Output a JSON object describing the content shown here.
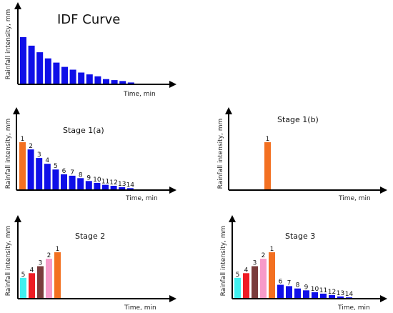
{
  "colors": {
    "blue": "#0f0fe8",
    "orange": "#f37021",
    "cyan": "#3ff0f0",
    "red": "#ee1c24",
    "brown": "#7a3c3c",
    "pink": "#f79ac9",
    "axis": "#000000"
  },
  "panels": [
    {
      "id": "idf-curve",
      "title": "IDF Curve",
      "ylabel": "Rainfall intensity, mm",
      "xlabel": "Time, min",
      "bars": [
        {
          "v": 1.0,
          "c": "blue"
        },
        {
          "v": 0.82,
          "c": "blue"
        },
        {
          "v": 0.68,
          "c": "blue"
        },
        {
          "v": 0.55,
          "c": "blue"
        },
        {
          "v": 0.46,
          "c": "blue"
        },
        {
          "v": 0.37,
          "c": "blue"
        },
        {
          "v": 0.31,
          "c": "blue"
        },
        {
          "v": 0.25,
          "c": "blue"
        },
        {
          "v": 0.21,
          "c": "blue"
        },
        {
          "v": 0.17,
          "c": "blue"
        },
        {
          "v": 0.11,
          "c": "blue"
        },
        {
          "v": 0.09,
          "c": "blue"
        },
        {
          "v": 0.07,
          "c": "blue"
        },
        {
          "v": 0.04,
          "c": "blue"
        }
      ]
    },
    {
      "id": "stage-1a",
      "title": "Stage 1(a)",
      "ylabel": "Rainfall intensity, mm",
      "xlabel": "Time, min",
      "bars": [
        {
          "v": 1.0,
          "c": "orange",
          "n": "1"
        },
        {
          "v": 0.85,
          "c": "blue",
          "n": "2"
        },
        {
          "v": 0.67,
          "c": "blue",
          "n": "3"
        },
        {
          "v": 0.55,
          "c": "blue",
          "n": "4"
        },
        {
          "v": 0.43,
          "c": "blue",
          "n": "5"
        },
        {
          "v": 0.33,
          "c": "blue",
          "n": "6"
        },
        {
          "v": 0.3,
          "c": "blue",
          "n": "7"
        },
        {
          "v": 0.25,
          "c": "blue",
          "n": "8"
        },
        {
          "v": 0.19,
          "c": "blue",
          "n": "9"
        },
        {
          "v": 0.15,
          "c": "blue",
          "n": "10"
        },
        {
          "v": 0.11,
          "c": "blue",
          "n": "11"
        },
        {
          "v": 0.09,
          "c": "blue",
          "n": "12"
        },
        {
          "v": 0.06,
          "c": "blue",
          "n": "13"
        },
        {
          "v": 0.04,
          "c": "blue",
          "n": "14"
        }
      ]
    },
    {
      "id": "stage-1b",
      "title": "Stage 1(b)",
      "ylabel": "Rainfall intensity, mm",
      "xlabel": "Time, min",
      "bars": [
        {
          "v": 1.0,
          "c": "orange",
          "n": "1",
          "slot": 6
        }
      ]
    },
    {
      "id": "stage-2",
      "title": "Stage 2",
      "ylabel": "Rainfall intensity, mm",
      "xlabel": "Time, min",
      "bars": [
        {
          "v": 0.45,
          "c": "cyan",
          "n": "5"
        },
        {
          "v": 0.55,
          "c": "red",
          "n": "4"
        },
        {
          "v": 0.7,
          "c": "brown",
          "n": "3"
        },
        {
          "v": 0.86,
          "c": "pink",
          "n": "2"
        },
        {
          "v": 1.0,
          "c": "orange",
          "n": "1"
        }
      ]
    },
    {
      "id": "stage-3",
      "title": "Stage 3",
      "ylabel": "Rainfall intensity, mm",
      "xlabel": "Time, min",
      "bars": [
        {
          "v": 0.45,
          "c": "cyan",
          "n": "5"
        },
        {
          "v": 0.55,
          "c": "red",
          "n": "4"
        },
        {
          "v": 0.7,
          "c": "brown",
          "n": "3"
        },
        {
          "v": 0.86,
          "c": "pink",
          "n": "2"
        },
        {
          "v": 1.0,
          "c": "orange",
          "n": "1"
        },
        {
          "v": 0.3,
          "c": "blue",
          "n": "6"
        },
        {
          "v": 0.27,
          "c": "blue",
          "n": "7"
        },
        {
          "v": 0.22,
          "c": "blue",
          "n": "8"
        },
        {
          "v": 0.18,
          "c": "blue",
          "n": "9"
        },
        {
          "v": 0.14,
          "c": "blue",
          "n": "10"
        },
        {
          "v": 0.11,
          "c": "blue",
          "n": "11"
        },
        {
          "v": 0.08,
          "c": "blue",
          "n": "12"
        },
        {
          "v": 0.05,
          "c": "blue",
          "n": "13"
        },
        {
          "v": 0.03,
          "c": "blue",
          "n": "14"
        }
      ]
    }
  ]
}
